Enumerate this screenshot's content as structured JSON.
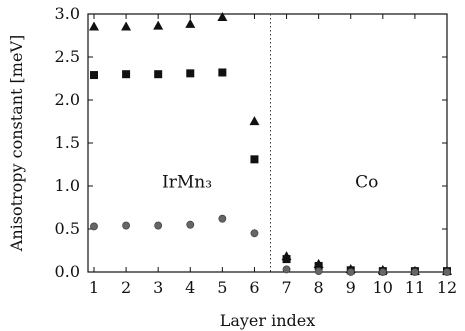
{
  "chart_data": {
    "type": "scatter",
    "xlabel": "Layer index",
    "ylabel": "Anisotropy constant [meV]",
    "xlim": [
      1,
      12
    ],
    "ylim": [
      0.0,
      3.0
    ],
    "x_ticks": [
      "1",
      "2",
      "3",
      "4",
      "5",
      "6",
      "7",
      "8",
      "9",
      "10",
      "11",
      "12"
    ],
    "y_ticks": [
      "0.0",
      "0.5",
      "1.0",
      "1.5",
      "2.0",
      "2.5",
      "3.0"
    ],
    "divider_x": 6.5,
    "annotations": [
      {
        "text": "IrMn₃",
        "x": 3.9,
        "y": 1.05
      },
      {
        "text": "Co",
        "x": 9.5,
        "y": 1.05
      }
    ],
    "series": [
      {
        "marker": "triangle",
        "color": "#111111",
        "x": [
          1,
          2,
          3,
          4,
          5,
          6,
          7,
          8,
          9,
          10,
          11,
          12
        ],
        "y": [
          2.85,
          2.85,
          2.86,
          2.88,
          2.96,
          1.75,
          0.18,
          0.09,
          0.03,
          0.02,
          0.01,
          0.01
        ]
      },
      {
        "marker": "square",
        "color": "#111111",
        "x": [
          1,
          2,
          3,
          4,
          5,
          6,
          7,
          8,
          9,
          10,
          11,
          12
        ],
        "y": [
          2.29,
          2.3,
          2.3,
          2.31,
          2.32,
          1.31,
          0.15,
          0.07,
          0.02,
          0.01,
          0.01,
          0.01
        ]
      },
      {
        "marker": "circle",
        "color": "#666666",
        "x": [
          1,
          2,
          3,
          4,
          5,
          6,
          7,
          8,
          9,
          10,
          11,
          12
        ],
        "y": [
          0.53,
          0.54,
          0.54,
          0.55,
          0.62,
          0.45,
          0.03,
          0.01,
          0.0,
          0.0,
          0.0,
          0.0
        ]
      }
    ]
  }
}
